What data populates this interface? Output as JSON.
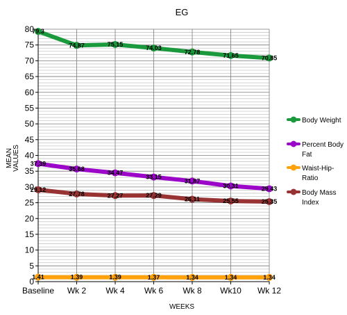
{
  "chart_data": {
    "type": "line",
    "title": "EG",
    "xlabel": "WEEKS",
    "ylabel_lines": [
      "MEAN",
      "VALUES"
    ],
    "categories": [
      "Baseline",
      "Wk 2",
      "Wk 4",
      "Wk 6",
      "Wk 8",
      "Wk10",
      "Wk 12"
    ],
    "ylim": [
      0,
      80
    ],
    "major_ticks": [
      0,
      5,
      10,
      15,
      20,
      25,
      30,
      35,
      40,
      45,
      50,
      55,
      60,
      65,
      70,
      75,
      80
    ],
    "minor_grid_step": 1,
    "grid": true,
    "legend_position": "right",
    "series": [
      {
        "name_lines": [
          "Body Weight"
        ],
        "color": "#1a9a3c",
        "values": [
          79.3,
          74.87,
          75.15,
          74.03,
          72.78,
          71.65,
          70.85
        ],
        "labels": [
          "79.3",
          "74.87",
          "75.15",
          "74.03",
          "72.78",
          "71.65",
          "70.85"
        ]
      },
      {
        "name_lines": [
          "Percent Body",
          "Fat"
        ],
        "color": "#9b06c8",
        "values": [
          37.39,
          35.68,
          34.47,
          33.15,
          31.87,
          30.31,
          29.43
        ],
        "labels": [
          "37.39",
          "35.68",
          "34.47",
          "33.15",
          "31.87",
          "30.31",
          "29.43"
        ]
      },
      {
        "name_lines": [
          "Waist-Hip-",
          "Ratio"
        ],
        "color": "#ffa20d",
        "values": [
          1.41,
          1.39,
          1.39,
          1.37,
          1.34,
          1.34,
          1.34
        ],
        "labels": [
          "1.41",
          "1.39",
          "1.39",
          "1.37",
          "1.34",
          "1.34",
          "1.34"
        ]
      },
      {
        "name_lines": [
          "Body Mass",
          "Index"
        ],
        "color": "#993333",
        "values": [
          29.12,
          27.78,
          27.27,
          27.29,
          26.11,
          25.55,
          25.35
        ],
        "labels": [
          "29.12",
          "27.78",
          "27.27",
          "27.29",
          "26.11",
          "25.55",
          "25.35"
        ]
      }
    ]
  }
}
